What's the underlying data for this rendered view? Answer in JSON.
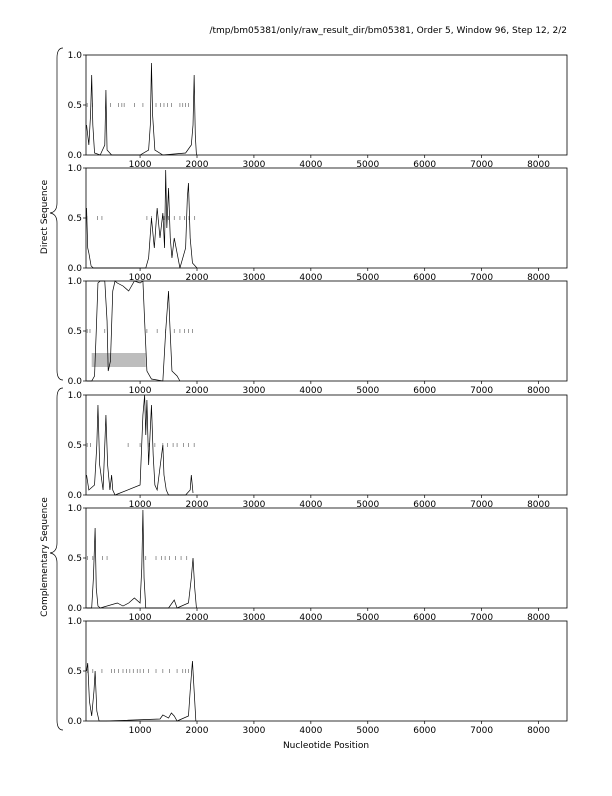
{
  "page": {
    "title": "/tmp/bm05381/only/raw_result_dir/bm05381, Order 5, Window 96, Step 12, 2/2",
    "x_label": "Nucleotide Position",
    "group_labels": [
      "Direct Sequence",
      "Complementary Sequence"
    ]
  },
  "chart_data": [
    {
      "type": "line",
      "xlim": [
        50,
        8500
      ],
      "ylim": [
        0,
        1
      ],
      "xticks": [
        1000,
        2000,
        3000,
        4000,
        5000,
        6000,
        7000,
        8000
      ],
      "yticks": [
        {
          "value": 0,
          "label": "0.0"
        },
        0.5,
        {
          "value": 1,
          "label": "1.0"
        }
      ],
      "x": [
        60,
        100,
        130,
        150,
        170,
        200,
        300,
        380,
        400,
        420,
        500,
        1000,
        1150,
        1180,
        1200,
        1220,
        1260,
        1400,
        1800,
        1900,
        1930,
        1950,
        1970,
        1990
      ],
      "series": [
        {
          "color": "#000000",
          "values": [
            0.3,
            0.1,
            0.4,
            0.8,
            0.3,
            0.02,
            0,
            0.1,
            0.65,
            0.05,
            0,
            0,
            0.05,
            0.3,
            0.92,
            0.4,
            0.05,
            0,
            0.02,
            0.1,
            0.3,
            0.8,
            0.2,
            0
          ]
        }
      ],
      "orf_marks": [
        70,
        160,
        400,
        480,
        620,
        680,
        720,
        900,
        1050,
        1280,
        1360,
        1420,
        1480,
        1550,
        1700,
        1750,
        1800,
        1850
      ],
      "regions": []
    },
    {
      "type": "line",
      "xlim": [
        50,
        8500
      ],
      "ylim": [
        0,
        1
      ],
      "xticks": [
        1000,
        2000,
        3000,
        4000,
        5000,
        6000,
        7000,
        8000
      ],
      "yticks": [
        {
          "value": 0,
          "label": "0.0"
        },
        0.5,
        {
          "value": 1,
          "label": "1.0"
        }
      ],
      "x": [
        60,
        80,
        100,
        140,
        180,
        1100,
        1150,
        1200,
        1250,
        1300,
        1350,
        1400,
        1430,
        1450,
        1470,
        1500,
        1530,
        1560,
        1600,
        1700,
        1800,
        1830,
        1850,
        1880,
        1920,
        2000
      ],
      "series": [
        {
          "color": "#000000",
          "values": [
            0.6,
            0.2,
            0.15,
            0.02,
            0,
            0,
            0.1,
            0.5,
            0.2,
            0.6,
            0.3,
            0.55,
            0.2,
            0.98,
            0.4,
            0.8,
            0.3,
            0.1,
            0.3,
            0,
            0.2,
            0.7,
            0.85,
            0.3,
            0.05,
            0
          ]
        }
      ],
      "orf_marks": [
        65,
        250,
        330,
        1120,
        1200,
        1420,
        1500,
        1600,
        1700,
        1780,
        1860,
        1960
      ],
      "regions": []
    },
    {
      "type": "line",
      "xlim": [
        50,
        8500
      ],
      "ylim": [
        0,
        1
      ],
      "xticks": [
        1000,
        2000,
        3000,
        4000,
        5000,
        6000,
        7000,
        8000
      ],
      "yticks": [
        {
          "value": 0,
          "label": "0.0"
        },
        0.5,
        {
          "value": 1,
          "label": "1.0"
        }
      ],
      "x": [
        60,
        150,
        200,
        230,
        260,
        300,
        380,
        420,
        440,
        480,
        520,
        560,
        600,
        700,
        800,
        900,
        1000,
        1050,
        1080,
        1120,
        1200,
        1400,
        1450,
        1500,
        1520,
        1560,
        1650,
        1700
      ],
      "series": [
        {
          "color": "#000000",
          "values": [
            0,
            0,
            0.05,
            0.5,
            0.98,
            1,
            1,
            0.6,
            0.1,
            0.2,
            0.9,
            1,
            0.98,
            0.95,
            0.9,
            1,
            0.98,
            1,
            0.6,
            0.1,
            0.02,
            0,
            0.5,
            0.9,
            0.6,
            0.1,
            0.05,
            0
          ]
        }
      ],
      "orf_marks": [
        70,
        120,
        380,
        1120,
        1300,
        1450,
        1600,
        1700,
        1780,
        1850,
        1920
      ],
      "regions": [
        {
          "start": 150,
          "end": 1100
        }
      ]
    },
    {
      "type": "line",
      "xlim": [
        50,
        8500
      ],
      "ylim": [
        0,
        1
      ],
      "xticks": [
        1000,
        2000,
        3000,
        4000,
        5000,
        6000,
        7000,
        8000
      ],
      "yticks": [
        {
          "value": 0,
          "label": "0.0"
        },
        0.5,
        {
          "value": 1,
          "label": "1.0"
        }
      ],
      "x": [
        60,
        100,
        200,
        240,
        260,
        290,
        350,
        400,
        430,
        470,
        500,
        520,
        560,
        1000,
        1050,
        1080,
        1100,
        1120,
        1150,
        1200,
        1230,
        1260,
        1300,
        1400,
        1420,
        1460,
        1500,
        1800,
        1880,
        1900,
        1930
      ],
      "series": [
        {
          "color": "#000000",
          "values": [
            0.2,
            0.05,
            0.1,
            0.5,
            0.9,
            0.3,
            0.05,
            0.8,
            0.3,
            0.05,
            0.2,
            0.05,
            0,
            0.1,
            0.8,
            1,
            0.6,
            0.95,
            0.3,
            0.9,
            0.4,
            0.1,
            0.05,
            0.5,
            0.2,
            0.05,
            0,
            0,
            0.05,
            0.2,
            0.02
          ]
        }
      ],
      "orf_marks": [
        70,
        130,
        790,
        1000,
        1160,
        1260,
        1400,
        1480,
        1580,
        1650,
        1760,
        1850,
        1950
      ],
      "regions": []
    },
    {
      "type": "line",
      "xlim": [
        50,
        8500
      ],
      "ylim": [
        0,
        1
      ],
      "xticks": [
        1000,
        2000,
        3000,
        4000,
        5000,
        6000,
        7000,
        8000
      ],
      "yticks": [
        {
          "value": 0,
          "label": "0.0"
        },
        0.5,
        {
          "value": 1,
          "label": "1.0"
        }
      ],
      "x": [
        60,
        150,
        180,
        210,
        230,
        260,
        300,
        600,
        700,
        800,
        900,
        1000,
        1030,
        1050,
        1070,
        1100,
        1500,
        1600,
        1650,
        1850,
        1900,
        1930,
        1960,
        1990
      ],
      "series": [
        {
          "color": "#000000",
          "values": [
            0,
            0,
            0.3,
            0.8,
            0.2,
            0.02,
            0,
            0.05,
            0.02,
            0.05,
            0.1,
            0.05,
            0.4,
            0.98,
            0.3,
            0,
            0,
            0.08,
            0,
            0.05,
            0.3,
            0.5,
            0.2,
            0
          ]
        }
      ],
      "orf_marks": [
        80,
        170,
        340,
        420,
        1100,
        1280,
        1380,
        1440,
        1520,
        1620,
        1720,
        1820
      ],
      "regions": []
    },
    {
      "type": "line",
      "xlim": [
        50,
        8500
      ],
      "ylim": [
        0,
        1
      ],
      "xticks": [
        1000,
        2000,
        3000,
        4000,
        5000,
        6000,
        7000,
        8000
      ],
      "yticks": [
        {
          "value": 0,
          "label": "0.0"
        },
        0.5,
        {
          "value": 1,
          "label": "1.0"
        }
      ],
      "x": [
        60,
        80,
        110,
        150,
        190,
        210,
        240,
        280,
        400,
        1350,
        1400,
        1500,
        1550,
        1600,
        1650,
        1850,
        1880,
        1920,
        1950,
        1980
      ],
      "series": [
        {
          "color": "#000000",
          "values": [
            0.5,
            0.58,
            0.2,
            0.05,
            0.3,
            0.5,
            0.1,
            0,
            0,
            0.02,
            0.06,
            0.03,
            0.08,
            0.05,
            0,
            0.05,
            0.3,
            0.6,
            0.3,
            0
          ]
        }
      ],
      "orf_marks": [
        80,
        170,
        330,
        500,
        550,
        620,
        700,
        760,
        820,
        880,
        950,
        1000,
        1060,
        1150,
        1280,
        1400,
        1520,
        1650,
        1750,
        1800,
        1850
      ],
      "regions": []
    }
  ]
}
